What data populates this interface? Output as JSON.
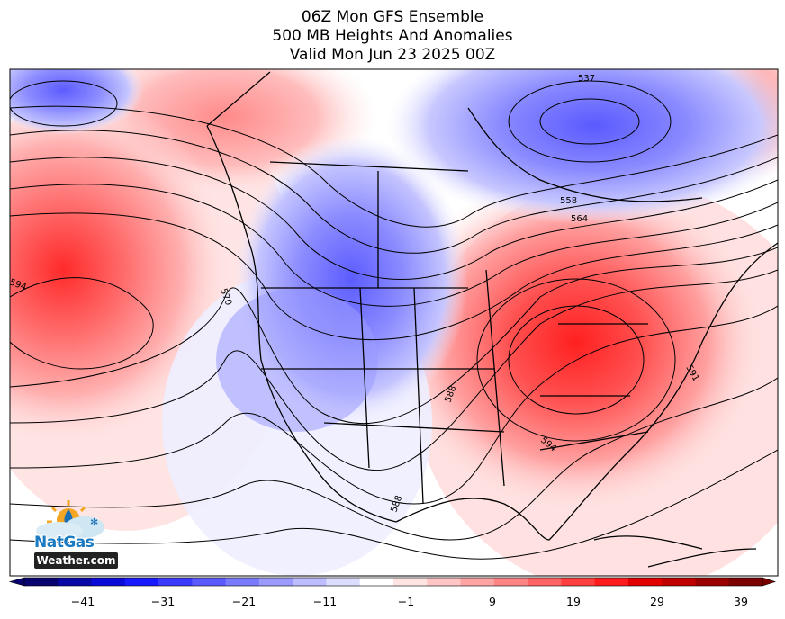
{
  "header": {
    "line1": "06Z Mon GFS Ensemble",
    "line2": "500 MB Heights And Anomalies",
    "line3": "Valid Mon Jun 23 2025 00Z"
  },
  "contour_labels": [
    "537",
    "558",
    "564",
    "570",
    "594",
    "588",
    "591",
    "594",
    "588"
  ],
  "colorbar": {
    "ticks": [
      "−41",
      "−31",
      "−21",
      "−11",
      "−1",
      "9",
      "19",
      "29",
      "39"
    ],
    "colors": [
      "#08036e",
      "#0a09a8",
      "#0b0bd8",
      "#1919ff",
      "#3b3bff",
      "#5a5aff",
      "#7a7aff",
      "#9a9aff",
      "#bcbcff",
      "#dcdcff",
      "#ffffff",
      "#ffe4e4",
      "#ffc4c4",
      "#ffa4a4",
      "#ff8484",
      "#ff6464",
      "#ff4040",
      "#ff1c1c",
      "#e00000",
      "#c00000",
      "#9a0000",
      "#7a0000"
    ]
  },
  "logo": {
    "name": "NatGas",
    "site": "Weather.com"
  }
}
